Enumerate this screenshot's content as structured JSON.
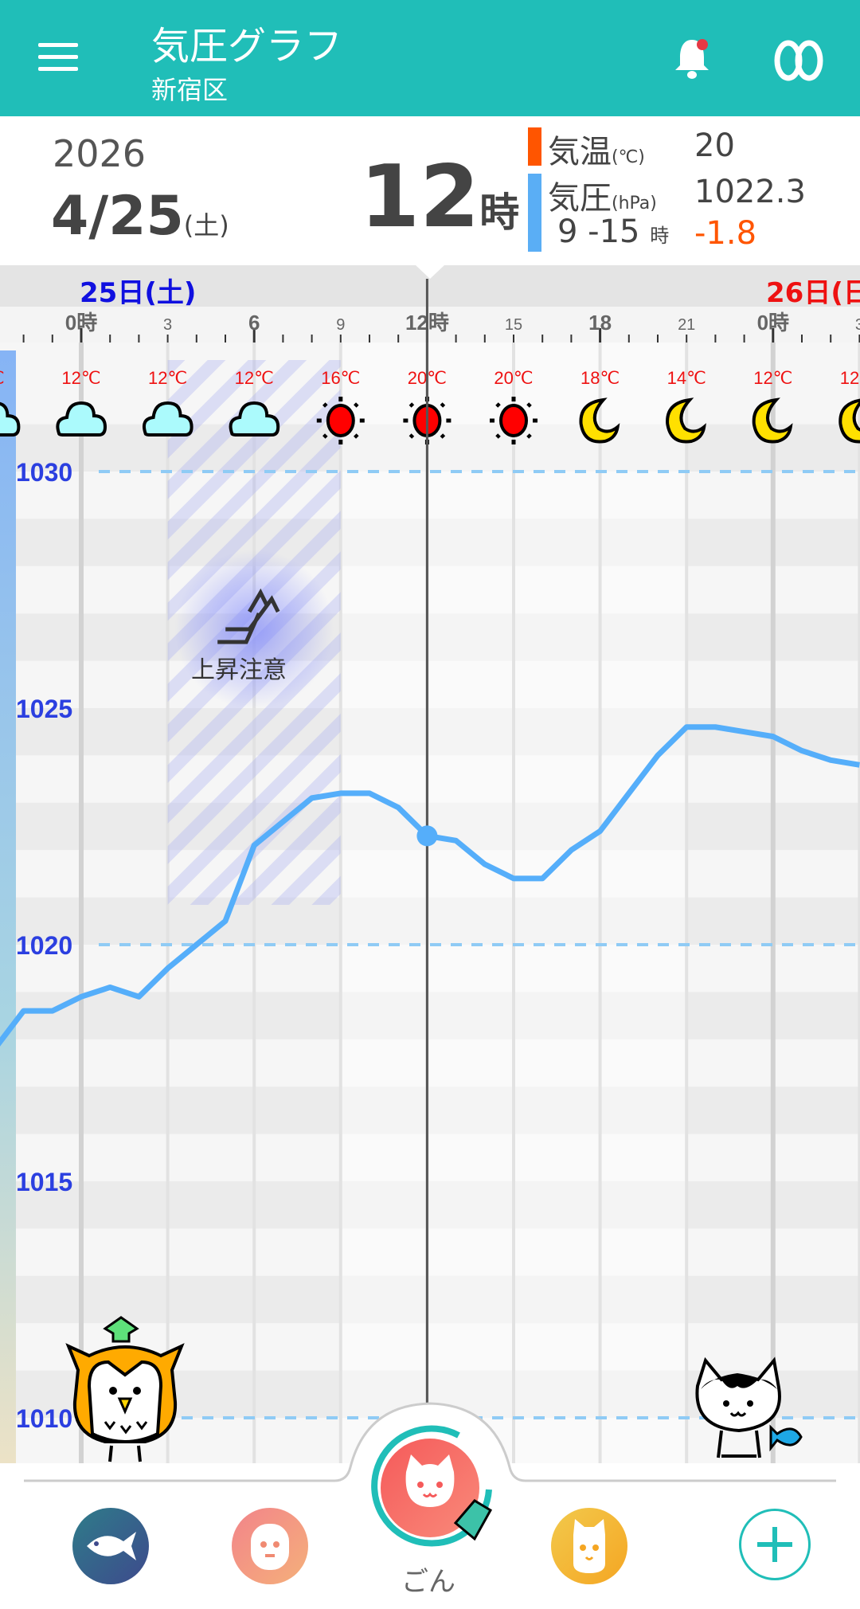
{
  "header": {
    "title": "気圧グラフ",
    "subtitle": "新宿区",
    "menu_icon": "hamburger-menu-icon",
    "bell_icon": "bell-icon",
    "bell_badge_color": "#E53945",
    "app_icon": "infinity-icon"
  },
  "info": {
    "year": "2026",
    "date": "4/25",
    "weekday": "(土)",
    "hour": "12",
    "hour_unit": "時",
    "temp_label": "気温",
    "temp_unit": "(℃)",
    "temp_value": "20",
    "pressure_label": "気圧",
    "pressure_unit": "(hPa)",
    "pressure_value": "1022.3",
    "range_label": "9 -15",
    "range_unit": "時",
    "range_change": "-1.8",
    "temp_color": "#FF5500",
    "pressure_color": "#5AAEF5"
  },
  "dates": [
    {
      "label": "25日(土)",
      "color": "#1010E0"
    },
    {
      "label": "26日(日",
      "color": "#EE1111"
    }
  ],
  "time_axis": [
    "0時",
    "3",
    "6",
    "9",
    "12時",
    "15",
    "18",
    "21",
    "0時",
    "3"
  ],
  "forecast": [
    {
      "temp": "℃",
      "icon": "cloud"
    },
    {
      "temp": "12℃",
      "icon": "cloud"
    },
    {
      "temp": "12℃",
      "icon": "cloud"
    },
    {
      "temp": "12℃",
      "icon": "cloud"
    },
    {
      "temp": "16℃",
      "icon": "sun"
    },
    {
      "temp": "20℃",
      "icon": "sun"
    },
    {
      "temp": "20℃",
      "icon": "sun"
    },
    {
      "temp": "18℃",
      "icon": "moon"
    },
    {
      "temp": "14℃",
      "icon": "moon"
    },
    {
      "temp": "12℃",
      "icon": "moon"
    },
    {
      "temp": "12℃",
      "icon": "moon"
    }
  ],
  "warning": {
    "label": "上昇注意",
    "icon": "rising-arrows-icon"
  },
  "chart_data": {
    "type": "line",
    "ylim": [
      1008,
      1031
    ],
    "yticks": [
      "1030",
      "1025",
      "1020",
      "1015",
      "1010"
    ],
    "dashed_levels": [
      1030,
      1020,
      1010
    ],
    "selected_hour": 12,
    "warning_hours": [
      3,
      9
    ],
    "hours": [
      -3,
      -2,
      -1,
      0,
      1,
      2,
      3,
      4,
      5,
      6,
      7,
      8,
      9,
      10,
      11,
      12,
      13,
      14,
      15,
      16,
      17,
      18,
      19,
      20,
      21,
      22,
      23,
      24,
      25,
      26,
      27
    ],
    "pressure": [
      1017.8,
      1018.6,
      1018.6,
      1018.9,
      1019.1,
      1018.9,
      1019.5,
      1020.0,
      1020.5,
      1022.1,
      1022.6,
      1023.1,
      1023.2,
      1023.2,
      1022.9,
      1022.3,
      1022.2,
      1021.7,
      1021.4,
      1021.4,
      1022.0,
      1022.4,
      1023.2,
      1024.0,
      1024.6,
      1024.6,
      1024.5,
      1024.4,
      1024.1,
      1023.9,
      1023.8
    ],
    "line_color": "#55AEFA"
  },
  "nav": {
    "items": [
      {
        "name": "fish",
        "color1": "#2E7C8A",
        "color2": "#3E4A8C"
      },
      {
        "name": "face",
        "color1": "#F2848A",
        "color2": "#F5B07A"
      },
      {
        "name": "ごん",
        "color1": "#F55A5A",
        "color2": "#F98A7A"
      },
      {
        "name": "cat",
        "color1": "#F2C94C",
        "color2": "#F5A623"
      },
      {
        "name": "add",
        "color1": "#ffffff",
        "color2": "#ffffff"
      }
    ],
    "selected_label": "ごん",
    "accent": "#20BEB8"
  }
}
